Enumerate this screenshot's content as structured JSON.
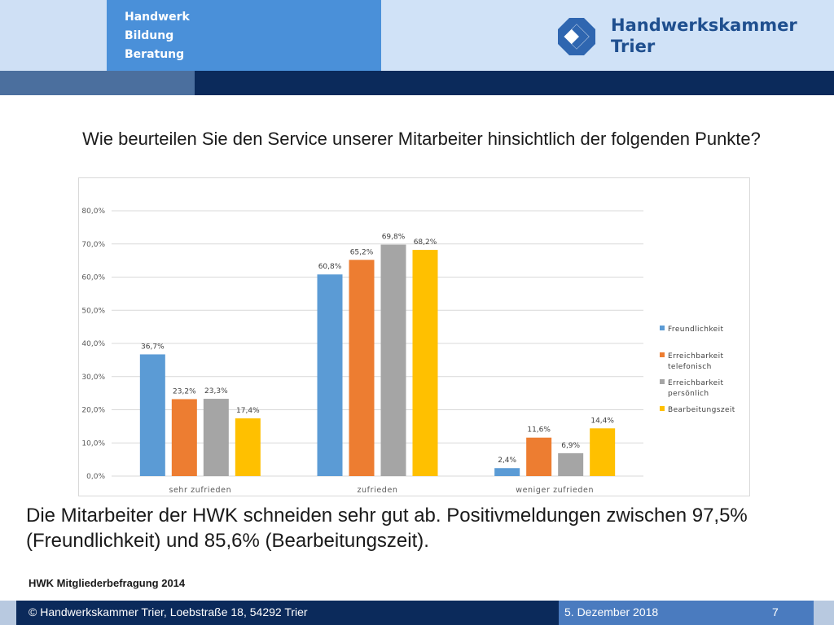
{
  "header": {
    "tagline": [
      "Handwerk",
      "Bildung",
      "Beratung"
    ],
    "org_name_line1": "Handwerkskammer",
    "org_name_line2": "Trier",
    "colors": {
      "brand_blue": "#4a90d9",
      "dark_navy": "#0b2a5b",
      "light_blue": "#d0e2f7"
    },
    "logo_icon": "handwerkskammer-logo-icon"
  },
  "slide": {
    "question": "Wie beurteilen Sie den Service unserer Mitarbeiter hinsichtlich der folgenden Punkte?",
    "summary": "Die Mitarbeiter der HWK schneiden sehr gut ab. Positivmeldungen zwischen 97,5% (Freundlichkeit) und 85,6% (Bearbeitungszeit).",
    "source": "HWK Mitgliederbefragung 2014"
  },
  "footer": {
    "copyright": "© Handwerkskammer Trier, Loebstraße 18, 54292 Trier",
    "date": "5. Dezember 2018",
    "page": "7"
  },
  "chart_data": {
    "type": "bar",
    "categories": [
      "sehr zufrieden",
      "zufrieden",
      "weniger zufrieden"
    ],
    "series": [
      {
        "name": "Freundlichkeit",
        "color": "#5b9bd5",
        "values": [
          36.7,
          60.8,
          2.4
        ],
        "labels": [
          "36,7%",
          "60,8%",
          "2,4%"
        ]
      },
      {
        "name": "Erreichbarkeit telefonisch",
        "color": "#ed7d31",
        "values": [
          23.2,
          65.2,
          11.6
        ],
        "labels": [
          "23,2%",
          "65,2%",
          "11,6%"
        ]
      },
      {
        "name": "Erreichbarkeit persönlich",
        "color": "#a5a5a5",
        "values": [
          23.3,
          69.8,
          6.9
        ],
        "labels": [
          "23,3%",
          "69,8%",
          "6,9%"
        ]
      },
      {
        "name": "Bearbeitungszeit",
        "color": "#ffc000",
        "values": [
          17.4,
          68.2,
          14.4
        ],
        "labels": [
          "17,4%",
          "68,2%",
          "14,4%"
        ]
      }
    ],
    "legend_lines": [
      [
        "Freundlichkeit"
      ],
      [
        "Erreichbarkeit",
        "telefonisch"
      ],
      [
        "Erreichbarkeit",
        "persönlich"
      ],
      [
        "Bearbeitungszeit"
      ]
    ],
    "yticks": [
      0,
      10,
      20,
      30,
      40,
      50,
      60,
      70,
      80
    ],
    "ytick_labels": [
      "0,0%",
      "10,0%",
      "20,0%",
      "30,0%",
      "40,0%",
      "50,0%",
      "60,0%",
      "70,0%",
      "80,0%"
    ],
    "ylim": [
      0,
      80
    ],
    "grid": true,
    "legend_position": "right"
  }
}
